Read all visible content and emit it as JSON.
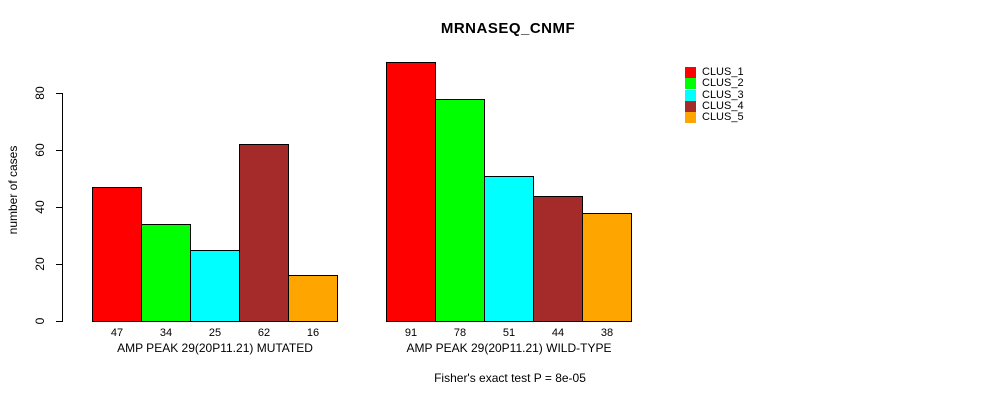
{
  "page": {
    "background_color": "#FFFFFF",
    "text_color": "#000000",
    "axis_color": "#000000"
  },
  "chart_data": {
    "type": "bar",
    "title": "MRNASEQ_CNMF",
    "ylabel": "number of cases",
    "xlabel": "",
    "yticks": [
      0,
      20,
      40,
      60,
      80
    ],
    "ylim": [
      0,
      93
    ],
    "grid": false,
    "legend_position": "right",
    "bar_values_shown": true,
    "groups": [
      "AMP PEAK 29(20P11.21) MUTATED",
      "AMP PEAK 29(20P11.21) WILD-TYPE"
    ],
    "series": [
      {
        "name": "CLUS_1",
        "color": "#FF0000",
        "values": [
          47,
          91
        ]
      },
      {
        "name": "CLUS_2",
        "color": "#00FF00",
        "values": [
          34,
          78
        ]
      },
      {
        "name": "CLUS_3",
        "color": "#00FFFF",
        "values": [
          25,
          51
        ]
      },
      {
        "name": "CLUS_4",
        "color": "#A52A2A",
        "values": [
          62,
          44
        ]
      },
      {
        "name": "CLUS_5",
        "color": "#FFA500",
        "values": [
          16,
          38
        ]
      }
    ],
    "caption": "Fisher's exact test P = 8e-05"
  }
}
